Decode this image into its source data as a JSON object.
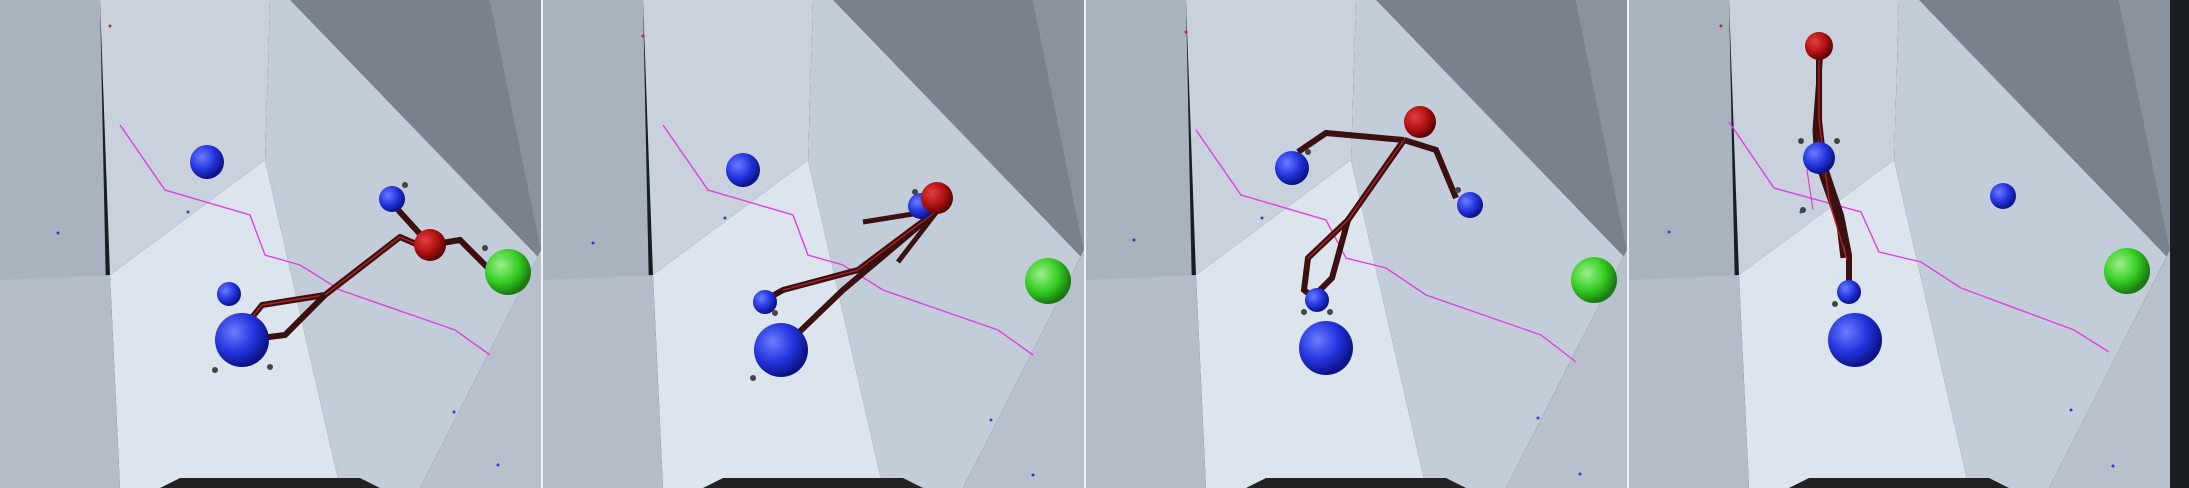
{
  "scene": {
    "frames": [
      {
        "pose": "reach-right",
        "right_hand_on_start_hold": true
      },
      {
        "pose": "lunge-up",
        "right_hand_on_start_hold": false
      },
      {
        "pose": "spread-high",
        "right_hand_on_start_hold": false
      },
      {
        "pose": "vertical-stretch",
        "right_hand_on_start_hold": false
      }
    ],
    "colors": {
      "wall_light": "#dce4ee",
      "wall_mid": "#c3cdd9",
      "wall_dark": "#8b929c",
      "wall_shadow": "#6f757e",
      "hold_blue": "#2233dd",
      "hold_green": "#33cc22",
      "climber_head": "#b01010",
      "limb": "#3a1010",
      "route_line": "#e040e0"
    },
    "icons": [
      "blue-hold-icon",
      "green-goal-hold-icon",
      "climber-head-icon",
      "contact-point-icon"
    ]
  }
}
